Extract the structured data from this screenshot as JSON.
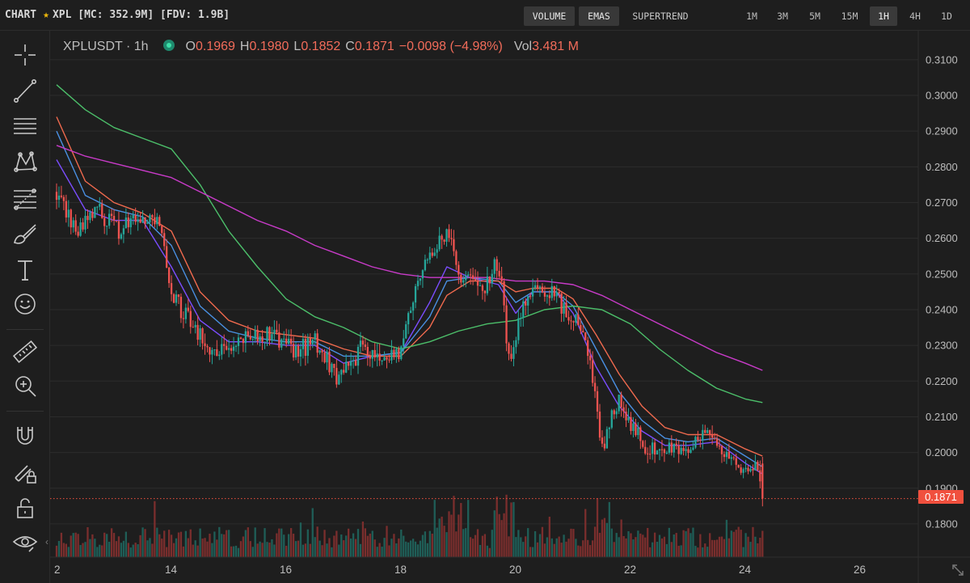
{
  "header": {
    "chart_label": "CHART",
    "token_info": "XPL [MC: 352.9M] [FDV: 1.9B]",
    "indicators": [
      {
        "label": "VOLUME",
        "active": true
      },
      {
        "label": "EMAS",
        "active": true
      },
      {
        "label": "SUPERTREND",
        "active": false
      }
    ],
    "timeframes": [
      {
        "label": "1M",
        "active": false
      },
      {
        "label": "3M",
        "active": false
      },
      {
        "label": "5M",
        "active": false
      },
      {
        "label": "15M",
        "active": false
      },
      {
        "label": "1H",
        "active": true
      },
      {
        "label": "4H",
        "active": false
      },
      {
        "label": "1D",
        "active": false
      }
    ]
  },
  "legend": {
    "symbol": "XPLUSDT · 1h",
    "o_key": "O",
    "o_val": "0.1969",
    "h_key": "H",
    "h_val": "0.1980",
    "l_key": "L",
    "l_val": "0.1852",
    "c_key": "C",
    "c_val": "0.1871",
    "change": "−0.0098 (−4.98%)",
    "vol_key": "Vol",
    "vol_val": "3.481 M"
  },
  "toolbar": {
    "tools": [
      "crosshair-icon",
      "trendline-icon",
      "horizontal-lines-icon",
      "pattern-icon",
      "fib-icon",
      "brush-icon",
      "text-icon",
      "emoji-icon",
      "ruler-icon",
      "zoom-in-icon",
      "magnet-icon",
      "lock-drawing-icon",
      "unlock-icon",
      "eye-icon"
    ]
  },
  "chart_data": {
    "type": "candlestick",
    "symbol": "XPLUSDT",
    "interval": "1h",
    "x_tick_labels": [
      "2",
      "14",
      "16",
      "18",
      "20",
      "22",
      "24",
      "26"
    ],
    "y_tick_labels": [
      "0.3100",
      "0.3000",
      "0.2900",
      "0.2800",
      "0.2700",
      "0.2600",
      "0.2500",
      "0.2400",
      "0.2300",
      "0.2200",
      "0.2100",
      "0.2000",
      "0.1900",
      "0.1800"
    ],
    "ylim": [
      0.17,
      0.315
    ],
    "last_price": "0.1871",
    "price_anchors": [
      {
        "day": 12.0,
        "price": 0.273
      },
      {
        "day": 12.3,
        "price": 0.262
      },
      {
        "day": 12.7,
        "price": 0.268
      },
      {
        "day": 13.1,
        "price": 0.262
      },
      {
        "day": 13.5,
        "price": 0.266
      },
      {
        "day": 13.8,
        "price": 0.264
      },
      {
        "day": 14.0,
        "price": 0.243
      },
      {
        "day": 14.3,
        "price": 0.238
      },
      {
        "day": 14.7,
        "price": 0.228
      },
      {
        "day": 15.2,
        "price": 0.231
      },
      {
        "day": 15.7,
        "price": 0.233
      },
      {
        "day": 16.2,
        "price": 0.228
      },
      {
        "day": 16.5,
        "price": 0.232
      },
      {
        "day": 16.9,
        "price": 0.22
      },
      {
        "day": 17.3,
        "price": 0.229
      },
      {
        "day": 17.7,
        "price": 0.226
      },
      {
        "day": 18.0,
        "price": 0.228
      },
      {
        "day": 18.3,
        "price": 0.249
      },
      {
        "day": 18.6,
        "price": 0.258
      },
      {
        "day": 18.8,
        "price": 0.262
      },
      {
        "day": 19.0,
        "price": 0.251
      },
      {
        "day": 19.4,
        "price": 0.244
      },
      {
        "day": 19.7,
        "price": 0.254
      },
      {
        "day": 19.9,
        "price": 0.224
      },
      {
        "day": 20.1,
        "price": 0.24
      },
      {
        "day": 20.4,
        "price": 0.248
      },
      {
        "day": 20.7,
        "price": 0.243
      },
      {
        "day": 21.0,
        "price": 0.238
      },
      {
        "day": 21.3,
        "price": 0.226
      },
      {
        "day": 21.5,
        "price": 0.2
      },
      {
        "day": 21.8,
        "price": 0.216
      },
      {
        "day": 22.2,
        "price": 0.202
      },
      {
        "day": 22.6,
        "price": 0.2
      },
      {
        "day": 23.0,
        "price": 0.201
      },
      {
        "day": 23.4,
        "price": 0.205
      },
      {
        "day": 23.7,
        "price": 0.198
      },
      {
        "day": 24.0,
        "price": 0.193
      },
      {
        "day": 24.2,
        "price": 0.196
      },
      {
        "day": 24.3,
        "price": 0.1871
      }
    ],
    "ema_lines": [
      {
        "name": "EMA purple",
        "color": "#7b4dff",
        "points": [
          [
            12.0,
            0.282
          ],
          [
            12.5,
            0.268
          ],
          [
            13.0,
            0.265
          ],
          [
            13.5,
            0.265
          ],
          [
            14.0,
            0.252
          ],
          [
            14.5,
            0.237
          ],
          [
            15.0,
            0.231
          ],
          [
            15.5,
            0.231
          ],
          [
            16.0,
            0.23
          ],
          [
            16.5,
            0.23
          ],
          [
            17.0,
            0.225
          ],
          [
            17.5,
            0.227
          ],
          [
            18.0,
            0.228
          ],
          [
            18.5,
            0.242
          ],
          [
            18.8,
            0.252
          ],
          [
            19.2,
            0.249
          ],
          [
            19.7,
            0.247
          ],
          [
            20.0,
            0.239
          ],
          [
            20.3,
            0.245
          ],
          [
            20.7,
            0.245
          ],
          [
            21.0,
            0.239
          ],
          [
            21.4,
            0.224
          ],
          [
            21.8,
            0.213
          ],
          [
            22.2,
            0.206
          ],
          [
            22.6,
            0.202
          ],
          [
            23.0,
            0.202
          ],
          [
            23.5,
            0.203
          ],
          [
            24.0,
            0.197
          ],
          [
            24.3,
            0.194
          ]
        ]
      },
      {
        "name": "EMA blue",
        "color": "#4a90e2",
        "points": [
          [
            12.0,
            0.29
          ],
          [
            12.5,
            0.272
          ],
          [
            13.0,
            0.268
          ],
          [
            13.5,
            0.266
          ],
          [
            14.0,
            0.258
          ],
          [
            14.5,
            0.241
          ],
          [
            15.0,
            0.234
          ],
          [
            15.5,
            0.232
          ],
          [
            16.0,
            0.231
          ],
          [
            16.5,
            0.231
          ],
          [
            17.0,
            0.227
          ],
          [
            17.5,
            0.227
          ],
          [
            18.0,
            0.228
          ],
          [
            18.5,
            0.238
          ],
          [
            18.8,
            0.248
          ],
          [
            19.2,
            0.249
          ],
          [
            19.7,
            0.248
          ],
          [
            20.0,
            0.242
          ],
          [
            20.3,
            0.245
          ],
          [
            20.7,
            0.245
          ],
          [
            21.0,
            0.241
          ],
          [
            21.4,
            0.229
          ],
          [
            21.8,
            0.217
          ],
          [
            22.2,
            0.209
          ],
          [
            22.6,
            0.204
          ],
          [
            23.0,
            0.203
          ],
          [
            23.5,
            0.204
          ],
          [
            24.0,
            0.199
          ],
          [
            24.3,
            0.196
          ]
        ]
      },
      {
        "name": "EMA orange",
        "color": "#f06a4e",
        "points": [
          [
            12.0,
            0.294
          ],
          [
            12.5,
            0.276
          ],
          [
            13.0,
            0.27
          ],
          [
            13.5,
            0.267
          ],
          [
            14.0,
            0.262
          ],
          [
            14.5,
            0.245
          ],
          [
            15.0,
            0.237
          ],
          [
            15.5,
            0.234
          ],
          [
            16.0,
            0.233
          ],
          [
            16.5,
            0.232
          ],
          [
            17.0,
            0.229
          ],
          [
            17.5,
            0.227
          ],
          [
            18.0,
            0.227
          ],
          [
            18.5,
            0.235
          ],
          [
            18.8,
            0.244
          ],
          [
            19.2,
            0.248
          ],
          [
            19.7,
            0.248
          ],
          [
            20.0,
            0.245
          ],
          [
            20.3,
            0.246
          ],
          [
            20.7,
            0.246
          ],
          [
            21.0,
            0.243
          ],
          [
            21.4,
            0.233
          ],
          [
            21.8,
            0.222
          ],
          [
            22.2,
            0.213
          ],
          [
            22.6,
            0.207
          ],
          [
            23.0,
            0.205
          ],
          [
            23.5,
            0.205
          ],
          [
            24.0,
            0.201
          ],
          [
            24.3,
            0.199
          ]
        ]
      },
      {
        "name": "EMA green",
        "color": "#4cbf6a",
        "points": [
          [
            12.0,
            0.303
          ],
          [
            12.5,
            0.296
          ],
          [
            13.0,
            0.291
          ],
          [
            13.5,
            0.288
          ],
          [
            14.0,
            0.285
          ],
          [
            14.5,
            0.275
          ],
          [
            15.0,
            0.262
          ],
          [
            15.5,
            0.252
          ],
          [
            16.0,
            0.243
          ],
          [
            16.5,
            0.238
          ],
          [
            17.0,
            0.235
          ],
          [
            17.5,
            0.231
          ],
          [
            18.0,
            0.229
          ],
          [
            18.5,
            0.231
          ],
          [
            19.0,
            0.234
          ],
          [
            19.5,
            0.236
          ],
          [
            20.0,
            0.237
          ],
          [
            20.5,
            0.24
          ],
          [
            21.0,
            0.241
          ],
          [
            21.5,
            0.24
          ],
          [
            22.0,
            0.236
          ],
          [
            22.5,
            0.229
          ],
          [
            23.0,
            0.223
          ],
          [
            23.5,
            0.218
          ],
          [
            24.0,
            0.215
          ],
          [
            24.3,
            0.214
          ]
        ]
      },
      {
        "name": "EMA magenta",
        "color": "#c93bc9",
        "points": [
          [
            12.0,
            0.286
          ],
          [
            12.5,
            0.283
          ],
          [
            13.0,
            0.281
          ],
          [
            13.5,
            0.279
          ],
          [
            14.0,
            0.277
          ],
          [
            14.5,
            0.273
          ],
          [
            15.0,
            0.269
          ],
          [
            15.5,
            0.265
          ],
          [
            16.0,
            0.262
          ],
          [
            16.5,
            0.258
          ],
          [
            17.0,
            0.255
          ],
          [
            17.5,
            0.252
          ],
          [
            18.0,
            0.25
          ],
          [
            18.5,
            0.249
          ],
          [
            19.0,
            0.249
          ],
          [
            19.5,
            0.249
          ],
          [
            20.0,
            0.248
          ],
          [
            20.5,
            0.248
          ],
          [
            21.0,
            0.247
          ],
          [
            21.5,
            0.244
          ],
          [
            22.0,
            0.24
          ],
          [
            22.5,
            0.236
          ],
          [
            23.0,
            0.232
          ],
          [
            23.5,
            0.228
          ],
          [
            24.0,
            0.225
          ],
          [
            24.3,
            0.223
          ]
        ]
      }
    ],
    "colors": {
      "up": "#26a69a",
      "down": "#ef5350",
      "background": "#1e1e1e",
      "grid": "#2c2c2c",
      "axis_text": "#bdbdbd",
      "last_price": "#f0503e"
    },
    "grid": true
  }
}
